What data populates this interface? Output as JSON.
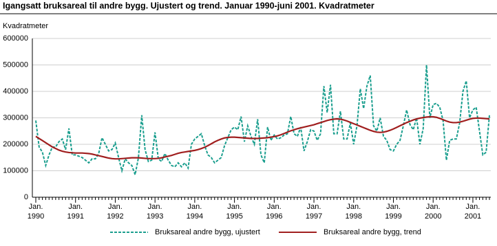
{
  "chart_data": {
    "type": "line",
    "title": "Igangsatt bruksareal til andre bygg. Ujustert og trend. Januar 1990-juni 2001. Kvadratmeter",
    "y_label": "Kvadratmeter",
    "categories": [
      "Jan. 1990",
      null,
      null,
      null,
      null,
      null,
      null,
      null,
      null,
      null,
      null,
      null,
      "Jan. 1991",
      null,
      null,
      null,
      null,
      null,
      null,
      null,
      null,
      null,
      null,
      null,
      "Jan. 1992",
      null,
      null,
      null,
      null,
      null,
      null,
      null,
      null,
      null,
      null,
      null,
      "Jan. 1993",
      null,
      null,
      null,
      null,
      null,
      null,
      null,
      null,
      null,
      null,
      null,
      "Jan. 1994",
      null,
      null,
      null,
      null,
      null,
      null,
      null,
      null,
      null,
      null,
      null,
      "Jan. 1995",
      null,
      null,
      null,
      null,
      null,
      null,
      null,
      null,
      null,
      null,
      null,
      "Jan. 1996",
      null,
      null,
      null,
      null,
      null,
      null,
      null,
      null,
      null,
      null,
      null,
      "Jan. 1997",
      null,
      null,
      null,
      null,
      null,
      null,
      null,
      null,
      null,
      null,
      null,
      "Jan. 1998",
      null,
      null,
      null,
      null,
      null,
      null,
      null,
      null,
      null,
      null,
      null,
      "Jan. 1999",
      null,
      null,
      null,
      null,
      null,
      null,
      null,
      null,
      null,
      null,
      null,
      "Jan. 2000",
      null,
      null,
      null,
      null,
      null,
      null,
      null,
      null,
      null,
      null,
      null,
      "Jan. 2001",
      null,
      null,
      null,
      null,
      null
    ],
    "series": [
      {
        "name": "Bruksareal andre bygg, ujustert",
        "color": "#1a9e8e",
        "dashed": true,
        "values": [
          290000,
          190000,
          170000,
          120000,
          160000,
          190000,
          190000,
          210000,
          220000,
          180000,
          260000,
          160000,
          160000,
          155000,
          150000,
          140000,
          130000,
          145000,
          145000,
          165000,
          225000,
          200000,
          175000,
          180000,
          205000,
          150000,
          100000,
          145000,
          130000,
          120000,
          85000,
          150000,
          310000,
          180000,
          135000,
          140000,
          245000,
          145000,
          135000,
          165000,
          140000,
          120000,
          115000,
          130000,
          115000,
          130000,
          110000,
          200000,
          220000,
          230000,
          240000,
          195000,
          160000,
          150000,
          130000,
          140000,
          150000,
          195000,
          225000,
          255000,
          265000,
          255000,
          305000,
          210000,
          270000,
          230000,
          200000,
          295000,
          160000,
          130000,
          265000,
          215000,
          235000,
          220000,
          225000,
          235000,
          240000,
          305000,
          240000,
          230000,
          265000,
          175000,
          210000,
          255000,
          250000,
          215000,
          240000,
          420000,
          320000,
          425000,
          240000,
          240000,
          325000,
          220000,
          220000,
          280000,
          200000,
          270000,
          410000,
          335000,
          420000,
          460000,
          270000,
          250000,
          300000,
          230000,
          215000,
          180000,
          175000,
          200000,
          215000,
          270000,
          330000,
          275000,
          255000,
          300000,
          200000,
          260000,
          500000,
          300000,
          350000,
          355000,
          340000,
          290000,
          140000,
          215000,
          220000,
          220000,
          280000,
          400000,
          440000,
          300000,
          330000,
          340000,
          250000,
          160000,
          170000,
          310000
        ]
      },
      {
        "name": "Bruksareal andre bygg, trend",
        "color": "#a01e1e",
        "dashed": false,
        "values": [
          230000,
          222000,
          214000,
          206000,
          198000,
          190000,
          184000,
          178000,
          174000,
          171000,
          169000,
          168000,
          167000,
          167000,
          167000,
          166000,
          165000,
          163000,
          160000,
          157000,
          154000,
          151000,
          148000,
          146000,
          145000,
          145000,
          146000,
          147000,
          148000,
          149000,
          149000,
          149000,
          148000,
          147000,
          146000,
          146000,
          146000,
          147000,
          149000,
          152000,
          155000,
          158000,
          162000,
          166000,
          169000,
          171000,
          173000,
          175000,
          177000,
          180000,
          184000,
          189000,
          195000,
          202000,
          209000,
          215000,
          220000,
          224000,
          226000,
          227000,
          227000,
          226000,
          225000,
          224000,
          223000,
          222000,
          222000,
          222000,
          223000,
          224000,
          225000,
          227000,
          229000,
          232000,
          236000,
          241000,
          246000,
          251000,
          255000,
          259000,
          262000,
          265000,
          268000,
          271000,
          274000,
          278000,
          282000,
          286000,
          290000,
          293000,
          295000,
          296000,
          295000,
          292000,
          288000,
          283000,
          278000,
          273000,
          268000,
          263000,
          258000,
          253000,
          249000,
          246000,
          245000,
          246000,
          249000,
          253000,
          258000,
          264000,
          270000,
          276000,
          282000,
          287000,
          292000,
          296000,
          299000,
          301000,
          303000,
          304000,
          304000,
          302000,
          298000,
          293000,
          288000,
          284000,
          282000,
          282000,
          284000,
          287000,
          291000,
          295000,
          298000,
          299000,
          299000,
          298000,
          297000,
          296000
        ]
      }
    ],
    "ylim": [
      0,
      600000
    ],
    "yticks": [
      0,
      100000,
      200000,
      300000,
      400000,
      500000,
      600000
    ],
    "grid": true
  }
}
